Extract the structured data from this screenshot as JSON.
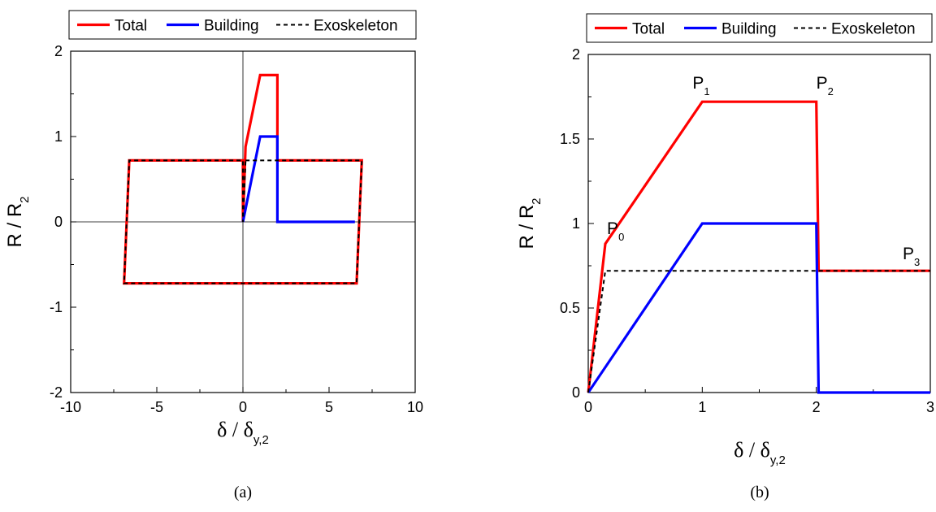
{
  "chart_data": [
    {
      "type": "line",
      "caption": "(a)",
      "xlabel": "δ / δy,2",
      "ylabel": "R / R2",
      "xlim": [
        -10,
        10
      ],
      "ylim": [
        -2,
        2
      ],
      "xticks": [
        -10,
        -5,
        0,
        5,
        10
      ],
      "yticks": [
        -2,
        -1,
        0,
        1,
        2
      ],
      "zero_lines": true,
      "legend": {
        "position": "top",
        "entries": [
          "Total",
          "Building",
          "Exoskeleton"
        ]
      },
      "series": [
        {
          "name": "Total",
          "color": "#ff0000",
          "style": "solid",
          "points": [
            [
              0,
              0
            ],
            [
              0.15,
              0.88
            ],
            [
              1,
              1.72
            ],
            [
              2,
              1.72
            ],
            [
              2,
              0.72
            ],
            [
              6.9,
              0.72
            ],
            [
              6.6,
              -0.72
            ],
            [
              -6.9,
              -0.72
            ],
            [
              -6.6,
              0.72
            ],
            [
              0,
              0.72
            ],
            [
              0,
              0
            ]
          ]
        },
        {
          "name": "Building",
          "color": "#0000ff",
          "style": "solid",
          "points": [
            [
              0,
              0
            ],
            [
              1,
              1
            ],
            [
              2,
              1
            ],
            [
              2,
              0
            ],
            [
              6.5,
              0
            ]
          ]
        },
        {
          "name": "Exoskeleton",
          "color": "#000000",
          "style": "dashed",
          "points": [
            [
              0.15,
              0.72
            ],
            [
              6.9,
              0.72
            ],
            [
              6.6,
              -0.72
            ],
            [
              -6.9,
              -0.72
            ],
            [
              -6.6,
              0.72
            ],
            [
              0,
              0.72
            ],
            [
              0,
              0
            ],
            [
              0.15,
              0.72
            ]
          ]
        }
      ]
    },
    {
      "type": "line",
      "caption": "(b)",
      "xlabel": "δ / δy,2",
      "ylabel": "R / R2",
      "xlim": [
        0,
        3
      ],
      "ylim": [
        0,
        2
      ],
      "xticks": [
        0,
        1,
        2,
        3
      ],
      "yticks": [
        0,
        0.5,
        1,
        1.5,
        2
      ],
      "legend": {
        "position": "top",
        "entries": [
          "Total",
          "Building",
          "Exoskeleton"
        ]
      },
      "annotations": [
        {
          "text": "P0",
          "x": 0.15,
          "y": 0.88
        },
        {
          "text": "P1",
          "x": 1,
          "y": 1.72
        },
        {
          "text": "P2",
          "x": 2,
          "y": 1.72
        },
        {
          "text": "P3",
          "x": 3,
          "y": 0.72
        }
      ],
      "series": [
        {
          "name": "Total",
          "color": "#ff0000",
          "style": "solid",
          "points": [
            [
              0,
              0
            ],
            [
              0.15,
              0.88
            ],
            [
              1,
              1.72
            ],
            [
              2,
              1.72
            ],
            [
              2.02,
              0.72
            ],
            [
              3,
              0.72
            ]
          ]
        },
        {
          "name": "Building",
          "color": "#0000ff",
          "style": "solid",
          "points": [
            [
              0,
              0
            ],
            [
              1,
              1
            ],
            [
              2,
              1
            ],
            [
              2.02,
              0
            ],
            [
              3,
              0
            ]
          ]
        },
        {
          "name": "Exoskeleton",
          "color": "#000000",
          "style": "dashed",
          "points": [
            [
              0,
              0
            ],
            [
              0.15,
              0.72
            ],
            [
              3,
              0.72
            ]
          ]
        }
      ]
    }
  ]
}
